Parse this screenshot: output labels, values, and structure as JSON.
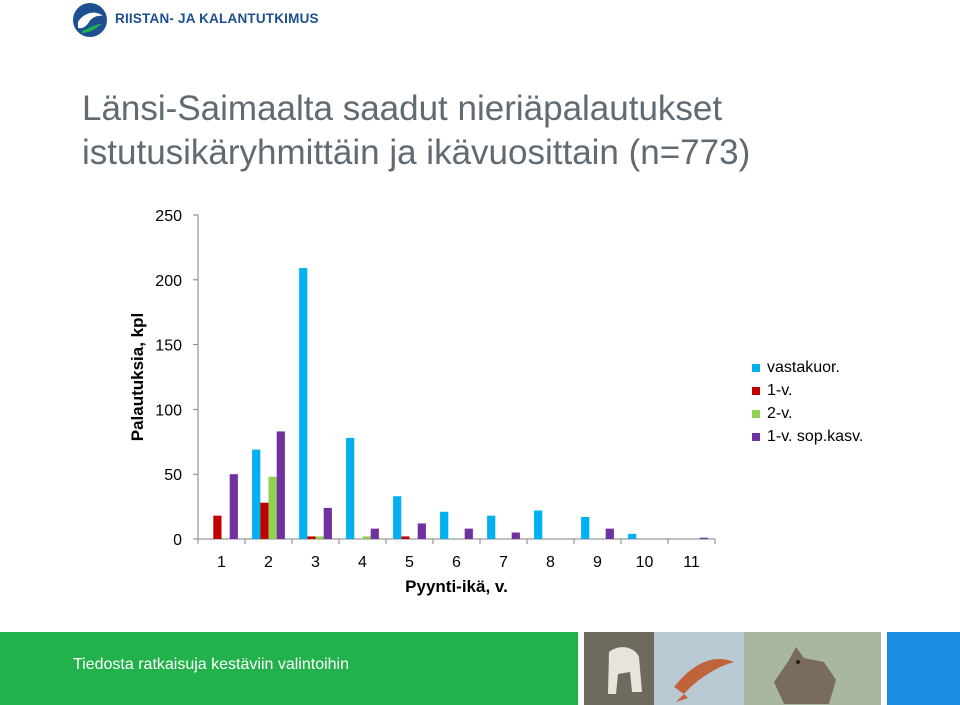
{
  "header": {
    "org_name": "RIISTAN- JA KALANTUTKIMUS",
    "title_line1": "Länsi-Saimaalta saadut nieriäpalautukset",
    "title_line2": "istutusikäryhmittäin ja ikävuosittain (n=773)"
  },
  "footer": {
    "tagline": "Tiedosta ratkaisuja kestäviin valintoihin",
    "accent_green": "#21b24b",
    "accent_blue": "#1a8de0"
  },
  "chart_data": {
    "type": "bar",
    "title": "",
    "xlabel": "Pyynti-ikä, v.",
    "ylabel": "Palautuksia, kpl",
    "categories": [
      "1",
      "2",
      "3",
      "4",
      "5",
      "6",
      "7",
      "8",
      "9",
      "10",
      "11"
    ],
    "ylim": [
      0,
      250
    ],
    "yticks": [
      0,
      50,
      100,
      150,
      200,
      250
    ],
    "grid": false,
    "legend_position": "right",
    "series": [
      {
        "name": "vastakuor.",
        "color": "#00b0f0",
        "values": [
          0,
          69,
          209,
          78,
          33,
          21,
          18,
          22,
          17,
          4,
          0
        ]
      },
      {
        "name": "1-v.",
        "color": "#c00000",
        "values": [
          18,
          28,
          2,
          0,
          2,
          0,
          0,
          0,
          0,
          0,
          0
        ]
      },
      {
        "name": "2-v.",
        "color": "#92d050",
        "values": [
          0,
          48,
          2,
          2,
          0,
          0,
          0,
          0,
          0,
          0,
          0
        ]
      },
      {
        "name": "1-v. sop.kasv.",
        "color": "#7030a0",
        "values": [
          50,
          83,
          24,
          8,
          12,
          8,
          5,
          0,
          8,
          0,
          1
        ]
      }
    ]
  }
}
